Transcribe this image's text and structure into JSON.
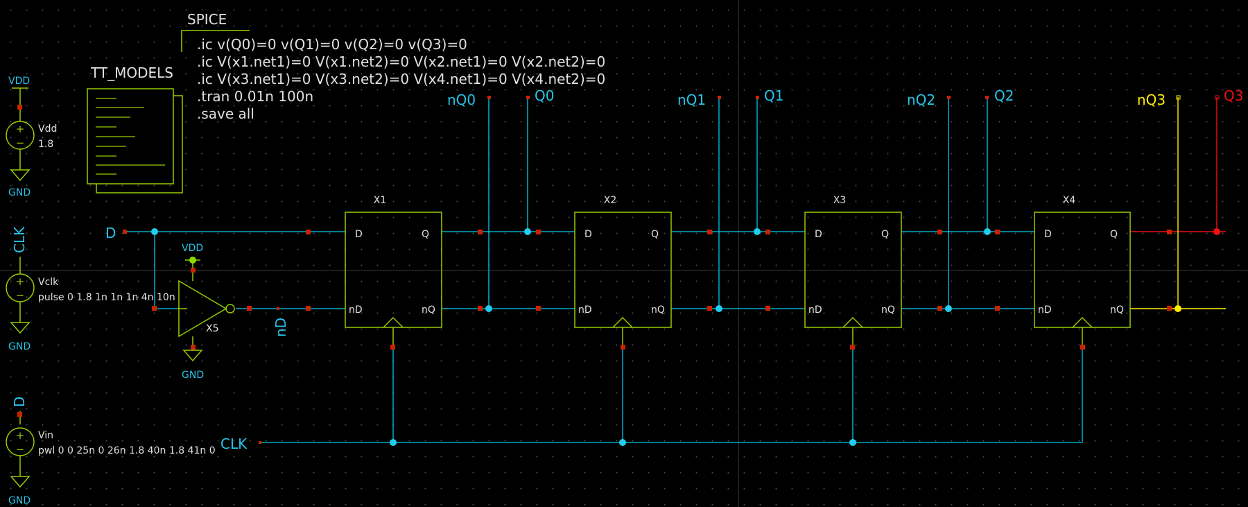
{
  "colors": {
    "background": "#000000",
    "wire": "#00ccee",
    "component": "#99cc00",
    "pin": "#cc2200",
    "label": "#29c3e8",
    "text": "#e0e0e0",
    "node_selected_yellow": "#ffee00",
    "node_selected_red": "#ee1111"
  },
  "spice_block": {
    "title": "SPICE",
    "lines": [
      ".ic v(Q0)=0 v(Q1)=0 v(Q2)=0 v(Q3)=0",
      ".ic V(x1.net1)=0 V(x1.net2)=0 V(x2.net1)=0 V(x2.net2)=0",
      ".ic V(x3.net1)=0 V(x3.net2)=0 V(x4.net1)=0 V(x4.net2)=0",
      ".tran 0.01n 100n",
      ".save all"
    ]
  },
  "models_block": {
    "title": "TT_MODELS"
  },
  "sources": {
    "vdd": {
      "net": "VDD",
      "name": "Vdd",
      "value": "1.8",
      "gnd": "GND",
      "icon": "voltage-source-icon"
    },
    "vclk": {
      "net": "CLK",
      "name": "Vclk",
      "value": "pulse 0 1.8 1n 1n 1n 4n 10n",
      "gnd": "GND",
      "icon": "voltage-source-icon"
    },
    "vin": {
      "net": "D",
      "name": "Vin",
      "value": "pwl 0 0 25n 0 26n 1.8 40n 1.8 41n 0",
      "gnd": "GND",
      "icon": "voltage-source-icon"
    }
  },
  "inverter": {
    "name": "X5",
    "vdd": "VDD",
    "gnd": "GND",
    "icon": "inverter-icon"
  },
  "net_labels": {
    "d_in": "D",
    "nd": "nD",
    "clk_bus": "CLK",
    "outputs": [
      {
        "nq": "nQ0",
        "q": "Q0"
      },
      {
        "nq": "nQ1",
        "q": "Q1"
      },
      {
        "nq": "nQ2",
        "q": "Q2"
      },
      {
        "nq": "nQ3",
        "q": "Q3"
      }
    ]
  },
  "flipflops": [
    {
      "name": "X1",
      "pin_d": "D",
      "pin_q": "Q",
      "pin_nd": "nD",
      "pin_nq": "nQ"
    },
    {
      "name": "X2",
      "pin_d": "D",
      "pin_q": "Q",
      "pin_nd": "nD",
      "pin_nq": "nQ"
    },
    {
      "name": "X3",
      "pin_d": "D",
      "pin_q": "Q",
      "pin_nd": "nD",
      "pin_nq": "nQ"
    },
    {
      "name": "X4",
      "pin_d": "D",
      "pin_q": "Q",
      "pin_nd": "nD",
      "pin_nq": "nQ"
    }
  ]
}
